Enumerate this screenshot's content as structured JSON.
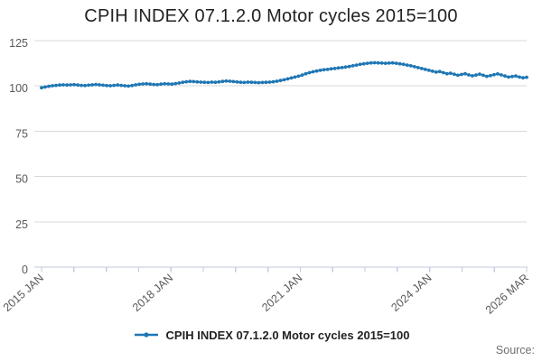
{
  "page": {
    "title": "CPIH INDEX 07.1.2.0 Motor cycles 2015=100",
    "source_label": "Source:"
  },
  "legend": {
    "label": "CPIH INDEX 07.1.2.0 Motor cycles 2015=100",
    "position": "bottom"
  },
  "colors": {
    "line": "#1f77b4",
    "grid": "#d9d9d9",
    "axis": "#c2cadd",
    "tick_text": "#595959",
    "title_text": "#222222",
    "source_text": "#707070"
  },
  "chart_data": {
    "type": "line",
    "title": "CPIH INDEX 07.1.2.0 Motor cycles 2015=100",
    "series_name": "CPIH INDEX 07.1.2.0 Motor cycles 2015=100",
    "frequency": "monthly",
    "x_start": "2015 JAN",
    "x_end": "2026 MAR",
    "n_points": 135,
    "xlabel": "",
    "ylabel": "",
    "ylim": [
      0,
      125
    ],
    "y_ticks": [
      0,
      25,
      50,
      75,
      100,
      125
    ],
    "grid": "horizontal",
    "marker": "circle",
    "legend_position": "bottom",
    "x_tick_count": 16,
    "x_tick_labels": [
      {
        "tick": 0,
        "label": "2015 JAN"
      },
      {
        "tick": 4,
        "label": "2018 JAN"
      },
      {
        "tick": 8,
        "label": "2021 JAN"
      },
      {
        "tick": 12,
        "label": "2024 JAN"
      },
      {
        "tick": 15,
        "label": "2026 MAR"
      }
    ],
    "values": [
      99.0,
      99.4,
      99.8,
      100.1,
      100.3,
      100.5,
      100.6,
      100.5,
      100.6,
      100.7,
      100.5,
      100.3,
      100.2,
      100.4,
      100.6,
      100.8,
      100.6,
      100.4,
      100.2,
      100.1,
      100.3,
      100.5,
      100.3,
      100.1,
      99.9,
      100.2,
      100.6,
      100.9,
      101.1,
      101.2,
      101.0,
      100.8,
      100.7,
      101.0,
      101.2,
      101.1,
      101.0,
      101.3,
      101.6,
      102.0,
      102.3,
      102.5,
      102.4,
      102.2,
      102.1,
      102.0,
      101.9,
      102.1,
      102.0,
      102.2,
      102.5,
      102.7,
      102.6,
      102.4,
      102.2,
      102.0,
      101.9,
      102.1,
      102.0,
      101.9,
      101.8,
      101.9,
      102.0,
      102.1,
      102.3,
      102.6,
      103.0,
      103.4,
      103.9,
      104.4,
      104.9,
      105.4,
      106.0,
      106.7,
      107.3,
      107.8,
      108.2,
      108.6,
      108.9,
      109.1,
      109.4,
      109.6,
      109.9,
      110.1,
      110.4,
      110.7,
      111.1,
      111.5,
      111.9,
      112.2,
      112.5,
      112.7,
      112.8,
      112.7,
      112.6,
      112.5,
      112.6,
      112.7,
      112.5,
      112.2,
      111.9,
      111.5,
      111.1,
      110.6,
      110.1,
      109.6,
      109.1,
      108.6,
      108.1,
      107.6,
      107.9,
      107.3,
      106.7,
      107.0,
      106.4,
      105.9,
      106.3,
      106.7,
      106.1,
      105.6,
      106.0,
      106.5,
      105.9,
      105.3,
      105.7,
      106.2,
      106.6,
      106.1,
      105.5,
      104.9,
      105.2,
      105.5,
      104.9,
      104.5,
      104.8
    ]
  }
}
